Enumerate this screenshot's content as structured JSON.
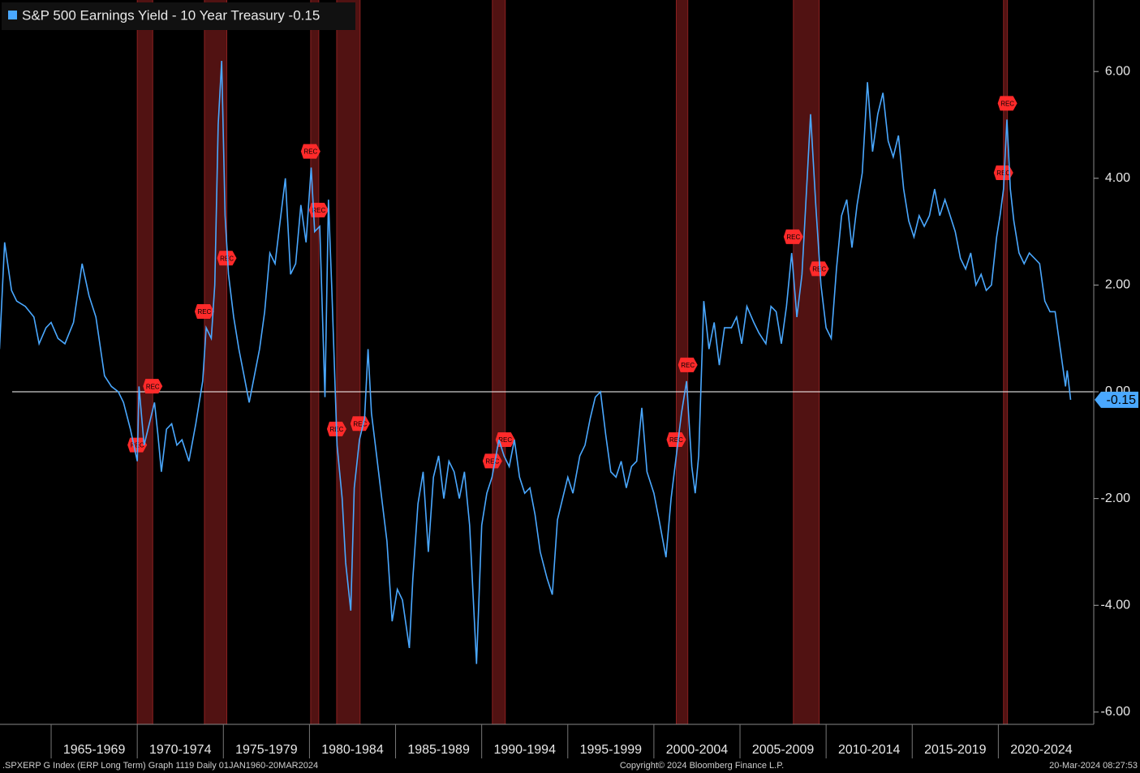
{
  "chart_data": {
    "type": "line",
    "title": "S&P 500 Earnings Yield - 10 Year Treasury -0.15",
    "series": [
      {
        "name": "S&P 500 Earnings Yield - 10 Year Treasury -0.15",
        "color": "#4aa8ff",
        "values": [
          0.8,
          2.8,
          1.9,
          1.7,
          1.6,
          1.4,
          0.9,
          1.2,
          1.3,
          1.0,
          0.9,
          1.3,
          2.4,
          1.8,
          1.4,
          0.3,
          0.1,
          0.0,
          -0.2,
          -0.7,
          -1.3,
          0.1,
          -1.0,
          -0.6,
          -0.2,
          -0.8,
          -1.5,
          -0.7,
          -0.6,
          -1.0,
          -0.9,
          -1.3,
          -0.6,
          0.2,
          1.2,
          1.0,
          2.0,
          5.0,
          6.2,
          3.3,
          2.2,
          1.4,
          0.8,
          0.3,
          -0.2,
          0.3,
          0.8,
          1.5,
          2.6,
          2.4,
          3.2,
          4.0,
          2.2,
          2.4,
          3.5,
          2.8,
          4.2,
          3.0,
          3.1,
          -0.1,
          3.6,
          1.9,
          -1.0,
          -2.0,
          -3.2,
          -4.1,
          -1.8,
          -0.9,
          -0.5,
          0.8,
          -0.4,
          -1.2,
          -2.0,
          -2.8,
          -4.3,
          -3.7,
          -3.9,
          -4.8,
          -3.5,
          -2.1,
          -1.5,
          -3.0,
          -1.6,
          -1.2,
          -2.0,
          -1.3,
          -1.5,
          -2.0,
          -1.5,
          -2.5,
          -5.1,
          -2.5,
          -1.9,
          -1.6,
          -0.9,
          -1.2,
          -1.4,
          -0.9,
          -1.6,
          -1.9,
          -1.8,
          -2.3,
          -3.0,
          -3.5,
          -3.8,
          -2.4,
          -2.0,
          -1.6,
          -1.9,
          -1.2,
          -1.0,
          -0.5,
          -0.1,
          0.0,
          -0.8,
          -1.5,
          -1.6,
          -1.3,
          -1.8,
          -1.4,
          -1.3,
          -0.3,
          -1.5,
          -1.9,
          -2.4,
          -3.1,
          -2.0,
          -1.2,
          -0.4,
          0.2,
          -1.4,
          -1.9,
          -1.2,
          1.7,
          0.8,
          1.3,
          0.5,
          1.2,
          1.2,
          1.4,
          0.9,
          1.6,
          1.3,
          1.1,
          0.9,
          1.6,
          1.5,
          0.9,
          1.6,
          2.6,
          1.4,
          2.2,
          4.0,
          5.2,
          3.5,
          2.0,
          1.2,
          1.0,
          2.3,
          3.3,
          3.6,
          2.7,
          3.5,
          4.1,
          5.8,
          4.5,
          5.2,
          5.6,
          4.7,
          4.4,
          4.8,
          3.8,
          3.2,
          2.9,
          3.3,
          3.1,
          3.3,
          3.8,
          3.3,
          3.6,
          3.3,
          3.0,
          2.5,
          2.3,
          2.6,
          2.0,
          2.2,
          1.9,
          2.0,
          2.9,
          3.3,
          3.8,
          5.1,
          3.8,
          3.2,
          2.6,
          2.4,
          2.6,
          2.5,
          2.4,
          1.7,
          1.5,
          1.5,
          0.8,
          0.1,
          0.4,
          -0.15
        ]
      }
    ],
    "x": [
      1962.0,
      1962.3,
      1962.7,
      1963.0,
      1963.5,
      1964.0,
      1964.3,
      1964.7,
      1965.0,
      1965.4,
      1965.8,
      1966.3,
      1966.8,
      1967.2,
      1967.6,
      1968.1,
      1968.5,
      1968.9,
      1969.2,
      1969.6,
      1970.0,
      1970.1,
      1970.4,
      1970.7,
      1971.0,
      1971.2,
      1971.4,
      1971.7,
      1972.0,
      1972.3,
      1972.6,
      1973.0,
      1973.4,
      1973.8,
      1974.0,
      1974.3,
      1974.5,
      1974.7,
      1974.9,
      1975.1,
      1975.3,
      1975.6,
      1975.9,
      1976.2,
      1976.5,
      1976.8,
      1977.1,
      1977.4,
      1977.7,
      1978.0,
      1978.3,
      1978.6,
      1978.9,
      1979.2,
      1979.5,
      1979.8,
      1980.1,
      1980.3,
      1980.6,
      1980.9,
      1981.1,
      1981.3,
      1981.6,
      1981.9,
      1982.1,
      1982.4,
      1982.6,
      1982.9,
      1983.2,
      1983.4,
      1983.6,
      1983.9,
      1984.2,
      1984.5,
      1984.8,
      1985.1,
      1985.4,
      1985.8,
      1986.0,
      1986.3,
      1986.6,
      1986.9,
      1987.2,
      1987.5,
      1987.8,
      1988.1,
      1988.4,
      1988.7,
      1989.0,
      1989.3,
      1989.7,
      1990.0,
      1990.3,
      1990.6,
      1991.0,
      1991.3,
      1991.6,
      1991.9,
      1992.2,
      1992.5,
      1992.8,
      1993.1,
      1993.4,
      1993.8,
      1994.1,
      1994.4,
      1994.7,
      1995.0,
      1995.3,
      1995.7,
      1996.0,
      1996.3,
      1996.6,
      1996.9,
      1997.2,
      1997.5,
      1997.8,
      1998.1,
      1998.4,
      1998.7,
      1999.0,
      1999.3,
      1999.6,
      2000.0,
      2000.3,
      2000.7,
      2001.0,
      2001.3,
      2001.6,
      2001.9,
      2002.2,
      2002.4,
      2002.6,
      2002.9,
      2003.2,
      2003.5,
      2003.8,
      2004.1,
      2004.5,
      2004.8,
      2005.1,
      2005.4,
      2005.8,
      2006.1,
      2006.5,
      2006.8,
      2007.1,
      2007.4,
      2007.7,
      2008.0,
      2008.3,
      2008.6,
      2008.9,
      2009.1,
      2009.4,
      2009.7,
      2010.0,
      2010.3,
      2010.6,
      2010.9,
      2011.2,
      2011.5,
      2011.8,
      2012.1,
      2012.4,
      2012.7,
      2013.0,
      2013.3,
      2013.6,
      2013.9,
      2014.2,
      2014.5,
      2014.8,
      2015.1,
      2015.4,
      2015.7,
      2016.0,
      2016.3,
      2016.6,
      2016.9,
      2017.2,
      2017.5,
      2017.8,
      2018.1,
      2018.4,
      2018.7,
      2019.0,
      2019.3,
      2019.6,
      2019.9,
      2020.1,
      2020.3,
      2020.5,
      2020.7,
      2020.9,
      2021.2,
      2021.5,
      2021.8,
      2022.1,
      2022.4,
      2022.7,
      2023.0,
      2023.3,
      2023.6,
      2023.9,
      2024.0,
      2024.2
    ],
    "xlim": [
      1962.03,
      2025.4
    ],
    "xticks": [
      {
        "value": 1967.5,
        "label": "1965-1969"
      },
      {
        "value": 1972.5,
        "label": "1970-1974"
      },
      {
        "value": 1977.5,
        "label": "1975-1979"
      },
      {
        "value": 1982.5,
        "label": "1980-1984"
      },
      {
        "value": 1987.5,
        "label": "1985-1989"
      },
      {
        "value": 1992.5,
        "label": "1990-1994"
      },
      {
        "value": 1997.5,
        "label": "1995-1999"
      },
      {
        "value": 2002.5,
        "label": "2000-2004"
      },
      {
        "value": 2007.5,
        "label": "2005-2009"
      },
      {
        "value": 2012.5,
        "label": "2010-2014"
      },
      {
        "value": 2017.5,
        "label": "2015-2019"
      },
      {
        "value": 2022.5,
        "label": "2020-2024"
      }
    ],
    "ylim": [
      -6.23,
      7.34
    ],
    "yticks": [
      {
        "value": 6,
        "label": "6.00"
      },
      {
        "value": 4,
        "label": "4.00"
      },
      {
        "value": 2,
        "label": "2.00"
      },
      {
        "value": 0,
        "label": "0.00"
      },
      {
        "value": -2,
        "label": "-2.00"
      },
      {
        "value": -4,
        "label": "-4.00"
      },
      {
        "value": -6,
        "label": "-6.00"
      }
    ],
    "last_value": -0.15,
    "recessions": [
      {
        "start": 1970.0,
        "end": 1970.9,
        "label": "REC"
      },
      {
        "start": 1973.9,
        "end": 1975.2,
        "label": "REC"
      },
      {
        "start": 1980.07,
        "end": 1980.54,
        "label": "REC"
      },
      {
        "start": 1981.58,
        "end": 1982.94,
        "label": "REC"
      },
      {
        "start": 1990.62,
        "end": 1991.37,
        "label": "REC"
      },
      {
        "start": 2001.3,
        "end": 2001.97,
        "label": "REC"
      },
      {
        "start": 2008.1,
        "end": 2009.6,
        "label": "REC"
      },
      {
        "start": 2020.3,
        "end": 2020.53,
        "label": "REC"
      }
    ],
    "recession_color": "#5a1414",
    "footer": {
      "left": ".SPXERP G Index (ERP Long Term) Graph 1119  Daily 01JAN1960-20MAR2024",
      "center": "Copyright© 2024 Bloomberg Finance L.P.",
      "right": "20-Mar-2024 08:27:53"
    }
  }
}
